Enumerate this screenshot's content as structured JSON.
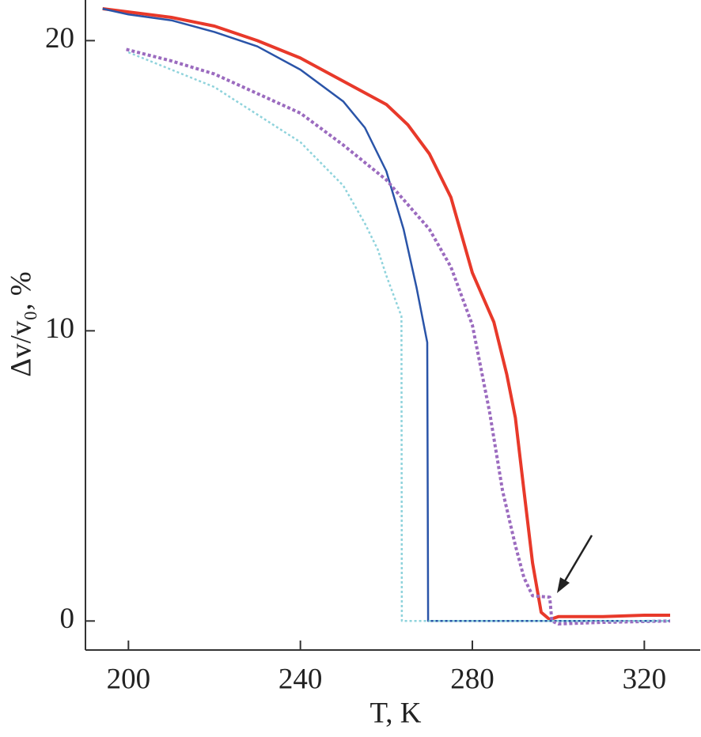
{
  "chart_data": {
    "type": "line",
    "x_label": "T, K",
    "y_label": "Δv/v₀, %",
    "xlim": [
      190,
      333
    ],
    "ylim": [
      -1,
      21.4
    ],
    "xticks": [
      200,
      240,
      280,
      320
    ],
    "yticks": [
      0,
      10,
      20
    ],
    "grid": false,
    "series": [
      {
        "color": "#e8392a",
        "width": 4,
        "dash": "none",
        "x": [
          194,
          210,
          220,
          230,
          240,
          250,
          260,
          265,
          270,
          275,
          280,
          285,
          288,
          290,
          292,
          294,
          296,
          298,
          300,
          310,
          320,
          326
        ],
        "values": [
          21.1,
          20.8,
          20.5,
          20.0,
          19.4,
          18.6,
          17.8,
          17.1,
          16.1,
          14.6,
          12.0,
          10.3,
          8.5,
          7.0,
          4.5,
          2.0,
          0.3,
          0.05,
          0.15,
          0.15,
          0.2,
          0.2
        ]
      },
      {
        "color": "#2a54a8",
        "width": 2.5,
        "dash": "none",
        "x": [
          194,
          200,
          210,
          220,
          230,
          240,
          250,
          255,
          260,
          264,
          267,
          269.5,
          269.7,
          280,
          300,
          326
        ],
        "values": [
          21.1,
          20.9,
          20.7,
          20.3,
          19.8,
          19.0,
          17.9,
          17.0,
          15.5,
          13.5,
          11.5,
          9.6,
          0,
          0,
          0,
          0
        ]
      },
      {
        "color": "#9b6bbf",
        "width": 4,
        "dash": "4 3",
        "x": [
          199.5,
          210,
          220,
          240,
          250,
          260,
          270,
          275,
          280,
          284,
          287,
          290,
          292,
          294,
          298,
          298.5,
          300,
          310,
          326
        ],
        "values": [
          19.7,
          19.3,
          18.85,
          17.5,
          16.4,
          15.2,
          13.5,
          12.2,
          10.2,
          7.2,
          4.5,
          2.6,
          1.5,
          0.87,
          0.82,
          0.0,
          -0.1,
          -0.05,
          0
        ]
      },
      {
        "color": "#8fd3dc",
        "width": 2.5,
        "dash": "3 3",
        "x": [
          200,
          220,
          240,
          250,
          255,
          258,
          260,
          263.5,
          263.6,
          280,
          326
        ],
        "values": [
          19.6,
          18.4,
          16.5,
          15.0,
          13.7,
          12.8,
          11.9,
          10.5,
          0,
          0,
          0
        ]
      }
    ]
  }
}
